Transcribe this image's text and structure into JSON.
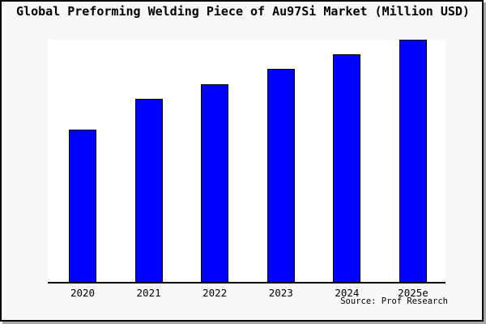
{
  "title": "Global Preforming Welding Piece of Au97Si Market (Million USD)",
  "source": "Source: Prof Research",
  "colors": {
    "bar_fill": "#0000FF",
    "bar_edge": "#000000",
    "plot_background": "#FFFFFF",
    "page_background": "#F8F8F8",
    "frame_border": "#000000",
    "frame_shadow": "#A8A8A8",
    "text": "#000000"
  },
  "chart_data": {
    "type": "bar",
    "title": "Global Preforming Welding Piece of Au97Si Market (Million USD)",
    "categories": [
      "2020",
      "2021",
      "2022",
      "2023",
      "2024",
      "2025e"
    ],
    "values": [
      62.7,
      75.2,
      81.3,
      87.7,
      93.7,
      99.7
    ],
    "xlabel": "",
    "ylabel": "",
    "ylim": [
      0,
      100
    ],
    "grid": false,
    "legend": false,
    "y_axis_visible": false,
    "note": "No y-axis scale shown in source image; values estimated as percent of tallest-bar scale (plot height).",
    "annotation": "Source: Prof Research"
  }
}
